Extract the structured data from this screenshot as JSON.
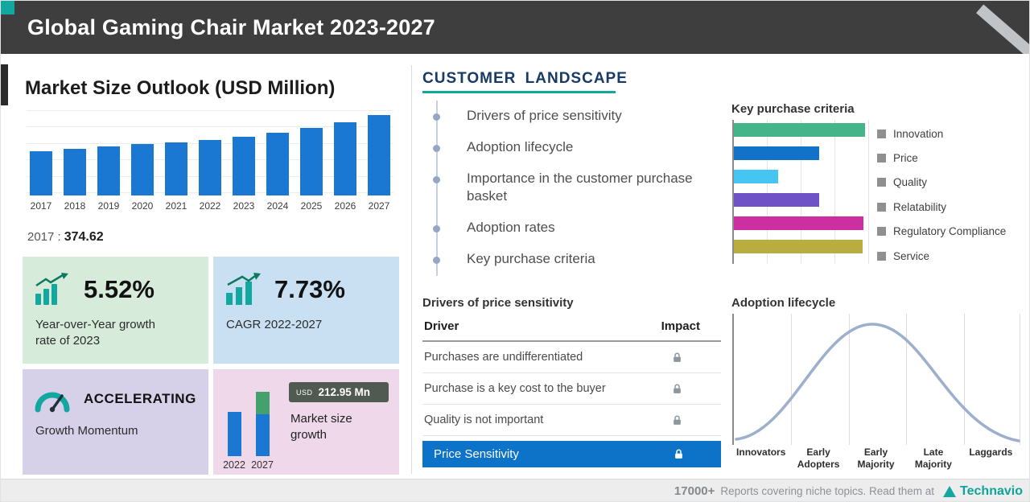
{
  "header": {
    "title": "Global Gaming Chair Market 2023-2027"
  },
  "market": {
    "title": "Market Size Outlook (USD Million)",
    "base_label": "2017 :",
    "base_value": "374.62",
    "cards": {
      "yoy": {
        "value": "5.52%",
        "label": "Year-over-Year growth rate of 2023"
      },
      "cagr": {
        "value": "7.73%",
        "label": "CAGR 2022-2027"
      },
      "momentum": {
        "value": "ACCELERATING",
        "label": "Growth Momentum"
      },
      "growth": {
        "currency": "USD",
        "amount": "212.95 Mn",
        "label": "Market size growth",
        "year_start": "2022",
        "year_end": "2027"
      }
    }
  },
  "customer": {
    "title": "CUSTOMER LANDSCAPE",
    "bullets": [
      "Drivers of price sensitivity",
      "Adoption lifecycle",
      "Importance in the customer purchase basket",
      "Adoption rates",
      "Key purchase criteria"
    ]
  },
  "drivers_table": {
    "title": "Drivers of price sensitivity",
    "col_driver": "Driver",
    "col_impact": "Impact",
    "rows": [
      {
        "driver": "Purchases are undifferentiated",
        "impact": "lock-icon"
      },
      {
        "driver": "Purchase is a key cost to the buyer",
        "impact": "lock-icon"
      },
      {
        "driver": "Quality is not important",
        "impact": "lock-icon"
      }
    ],
    "highlight_row": {
      "driver": "Price Sensitivity",
      "impact": "lock-icon"
    }
  },
  "footer": {
    "count": "17000+",
    "text": "Reports covering niche topics. Read them at",
    "brand": "Technavio"
  },
  "colors": {
    "accent_teal": "#12a79f",
    "header_bg": "#3e3e3e",
    "bar_blue": "#1a78d2",
    "highlight_blue": "#0d73c9",
    "card_green": "#d7ebda",
    "card_blue": "#c9e0f2",
    "card_purple": "#d7d0e9",
    "card_pink": "#efd8ea"
  },
  "chart_data": [
    {
      "type": "bar",
      "title": "Market Size Outlook (USD Million)",
      "categories": [
        "2017",
        "2018",
        "2019",
        "2020",
        "2021",
        "2022",
        "2023",
        "2024",
        "2025",
        "2026",
        "2027"
      ],
      "values": [
        374.62,
        396,
        418,
        438,
        455,
        472.1,
        498.2,
        536.7,
        578.2,
        622.9,
        685.05
      ],
      "labeled_point": {
        "year": "2017",
        "value": 374.62
      },
      "bar_color": "#1a78d2",
      "ylim": [
        0,
        700
      ],
      "grid": true
    },
    {
      "type": "bar",
      "orientation": "horizontal",
      "title": "Key purchase criteria",
      "categories": [
        "Innovation",
        "Price",
        "Quality",
        "Relatability",
        "Regulatory Compliance",
        "Service"
      ],
      "values": [
        9.7,
        6.3,
        3.3,
        6.3,
        9.6,
        9.5
      ],
      "xlim": [
        0,
        10
      ],
      "colors": [
        "#43b588",
        "#1272c8",
        "#45c6f2",
        "#6f52c6",
        "#cc2fa0",
        "#b8ad3e"
      ],
      "legend_marker_color": "#8f8f8f",
      "legend_position": "right"
    },
    {
      "type": "line",
      "title": "Adoption lifecycle",
      "shape": "bell-curve",
      "categories": [
        "Innovators",
        "Early Adopters",
        "Early Majority",
        "Late Majority",
        "Laggards"
      ],
      "line_color": "#9cb0ce",
      "grid": true
    },
    {
      "type": "bar",
      "title": "Market size growth",
      "categories": [
        "2022",
        "2027"
      ],
      "values": [
        472.1,
        685.05
      ],
      "growth_usd_mn": 212.95
    }
  ]
}
